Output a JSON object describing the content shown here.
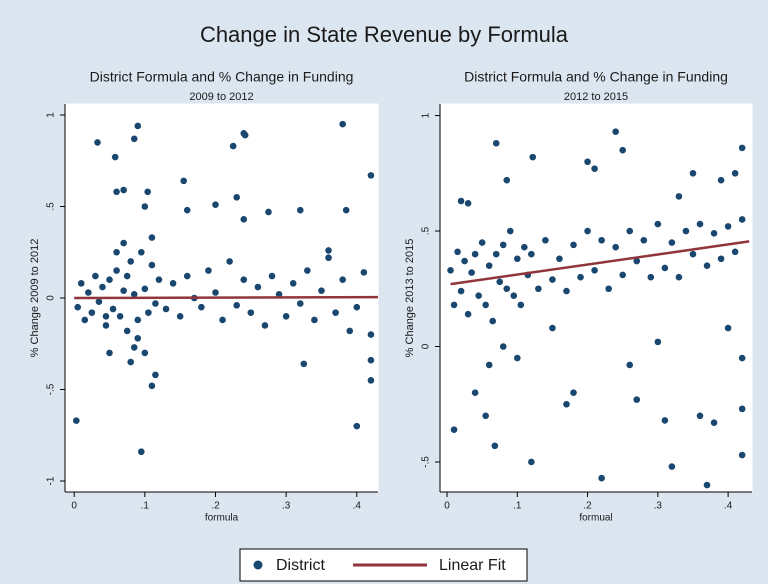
{
  "title": "Change in State Revenue by Formula",
  "legend": "bottom",
  "chart_data": [
    {
      "type": "scatter",
      "title": "District Formula and % Change in Funding",
      "subtitle": "2009 to 2012",
      "xlabel": "formula",
      "ylabel": "% Change 2009 to 2012",
      "xlim": [
        -0.013,
        0.43
      ],
      "ylim": [
        -1.06,
        1.06
      ],
      "xticks": [
        0,
        {
          "value": 0.1,
          "label": ".1"
        },
        {
          "value": 0.2,
          "label": ".2"
        },
        {
          "value": 0.3,
          "label": ".3"
        },
        {
          "value": 0.4,
          "label": ".4"
        }
      ],
      "yticks": [
        -1,
        {
          "value": -0.5,
          "label": "-.5"
        },
        0,
        {
          "value": 0.5,
          "label": ".5"
        },
        1
      ],
      "grid": false,
      "series": [
        {
          "name": "District",
          "type": "scatter",
          "color": "#1a476f",
          "x": [
            0.005,
            0.01,
            0.015,
            0.02,
            0.025,
            0.03,
            0.035,
            0.04,
            0.045,
            0.05,
            0.055,
            0.06,
            0.065,
            0.07,
            0.075,
            0.08,
            0.085,
            0.09,
            0.095,
            0.1,
            0.105,
            0.11,
            0.115,
            0.12,
            0.13,
            0.14,
            0.15,
            0.16,
            0.17,
            0.18,
            0.19,
            0.2,
            0.21,
            0.22,
            0.23,
            0.24,
            0.25,
            0.26,
            0.27,
            0.28,
            0.29,
            0.3,
            0.31,
            0.32,
            0.33,
            0.34,
            0.35,
            0.36,
            0.37,
            0.38,
            0.39,
            0.4,
            0.41,
            0.42,
            0.003,
            0.033,
            0.058,
            0.085,
            0.09,
            0.095,
            0.104,
            0.11,
            0.115,
            0.155,
            0.225,
            0.24,
            0.242,
            0.38,
            0.4,
            0.42,
            0.42,
            0.42,
            0.325,
            0.06,
            0.07,
            0.1,
            0.23,
            0.24,
            0.275,
            0.32,
            0.385,
            0.36,
            0.05,
            0.08,
            0.1,
            0.16,
            0.2,
            0.07,
            0.09,
            0.06,
            0.11,
            0.085,
            0.075,
            0.045
          ],
          "values": [
            -0.05,
            0.08,
            -0.12,
            0.03,
            -0.08,
            0.12,
            -0.02,
            0.06,
            -0.15,
            0.1,
            -0.06,
            0.15,
            -0.1,
            0.04,
            -0.18,
            0.2,
            0.02,
            -0.12,
            0.25,
            0.05,
            -0.08,
            0.18,
            -0.03,
            0.1,
            -0.06,
            0.08,
            -0.1,
            0.12,
            0.0,
            -0.05,
            0.15,
            0.03,
            -0.12,
            0.2,
            -0.04,
            0.1,
            -0.08,
            0.06,
            -0.15,
            0.12,
            0.02,
            -0.1,
            0.08,
            -0.03,
            0.15,
            -0.12,
            0.04,
            0.22,
            -0.08,
            0.1,
            -0.18,
            -0.05,
            0.14,
            -0.2,
            -0.67,
            0.85,
            0.77,
            0.87,
            0.94,
            -0.84,
            0.58,
            -0.48,
            -0.42,
            0.64,
            0.83,
            0.9,
            0.89,
            0.95,
            -0.7,
            0.67,
            -0.45,
            -0.34,
            -0.36,
            0.58,
            0.59,
            0.5,
            0.55,
            0.43,
            0.47,
            0.48,
            0.48,
            0.26,
            -0.3,
            -0.35,
            -0.3,
            0.48,
            0.51,
            0.3,
            -0.22,
            0.25,
            0.33,
            -0.27,
            0.12,
            -0.1
          ]
        },
        {
          "name": "Linear Fit",
          "type": "line",
          "color": "#90353b",
          "x": [
            0,
            0.43
          ],
          "values": [
            0.0,
            0.005
          ]
        }
      ]
    },
    {
      "type": "scatter",
      "title": "District Formula and % Change in Funding",
      "subtitle": "2012 to 2015",
      "xlabel": "formual",
      "ylabel": "% Change 2013 to 2015",
      "xlim": [
        -0.01,
        0.434
      ],
      "ylim": [
        -0.63,
        1.05
      ],
      "xticks": [
        0,
        {
          "value": 0.1,
          "label": ".1"
        },
        {
          "value": 0.2,
          "label": ".2"
        },
        {
          "value": 0.3,
          "label": ".3"
        },
        {
          "value": 0.4,
          "label": ".4"
        }
      ],
      "yticks": [
        {
          "value": -0.5,
          "label": "-.5"
        },
        0,
        {
          "value": 0.5,
          "label": ".5"
        },
        1
      ],
      "grid": false,
      "series": [
        {
          "type": "scatter",
          "color": "#1a476f",
          "x": [
            0.005,
            0.01,
            0.015,
            0.02,
            0.025,
            0.03,
            0.035,
            0.04,
            0.045,
            0.05,
            0.055,
            0.06,
            0.065,
            0.07,
            0.075,
            0.08,
            0.085,
            0.09,
            0.095,
            0.1,
            0.105,
            0.11,
            0.115,
            0.12,
            0.13,
            0.14,
            0.15,
            0.16,
            0.17,
            0.18,
            0.19,
            0.2,
            0.21,
            0.22,
            0.23,
            0.24,
            0.25,
            0.26,
            0.27,
            0.28,
            0.29,
            0.3,
            0.31,
            0.32,
            0.33,
            0.34,
            0.35,
            0.36,
            0.37,
            0.38,
            0.39,
            0.4,
            0.41,
            0.42,
            0.01,
            0.02,
            0.03,
            0.04,
            0.055,
            0.06,
            0.068,
            0.07,
            0.085,
            0.12,
            0.122,
            0.17,
            0.2,
            0.21,
            0.22,
            0.24,
            0.25,
            0.27,
            0.26,
            0.31,
            0.32,
            0.35,
            0.37,
            0.38,
            0.39,
            0.41,
            0.42,
            0.42,
            0.42,
            0.42,
            0.4,
            0.3,
            0.15,
            0.08,
            0.33,
            0.36,
            0.18,
            0.1
          ],
          "values": [
            0.33,
            0.18,
            0.41,
            0.24,
            0.37,
            0.14,
            0.32,
            0.4,
            0.22,
            0.45,
            0.18,
            0.35,
            0.11,
            0.4,
            0.28,
            0.44,
            0.25,
            0.5,
            0.22,
            0.38,
            0.18,
            0.43,
            0.31,
            0.4,
            0.25,
            0.46,
            0.29,
            0.38,
            0.24,
            0.44,
            0.3,
            0.5,
            0.33,
            0.46,
            0.25,
            0.43,
            0.31,
            0.5,
            0.37,
            0.46,
            0.3,
            0.53,
            0.34,
            0.45,
            0.3,
            0.5,
            0.4,
            0.53,
            0.35,
            0.49,
            0.38,
            0.52,
            0.41,
            0.55,
            -0.36,
            0.63,
            0.62,
            -0.2,
            -0.3,
            -0.08,
            -0.43,
            0.88,
            0.72,
            -0.5,
            0.82,
            -0.25,
            0.8,
            0.77,
            -0.57,
            0.93,
            0.85,
            -0.23,
            -0.08,
            -0.32,
            -0.52,
            0.75,
            -0.6,
            -0.33,
            0.72,
            0.75,
            0.86,
            -0.47,
            -0.05,
            -0.27,
            0.08,
            0.02,
            0.08,
            0.0,
            0.65,
            -0.3,
            -0.2,
            -0.05
          ]
        },
        {
          "type": "line",
          "color": "#90353b",
          "x": [
            0.005,
            0.43
          ],
          "values": [
            0.27,
            0.455
          ]
        }
      ]
    }
  ]
}
